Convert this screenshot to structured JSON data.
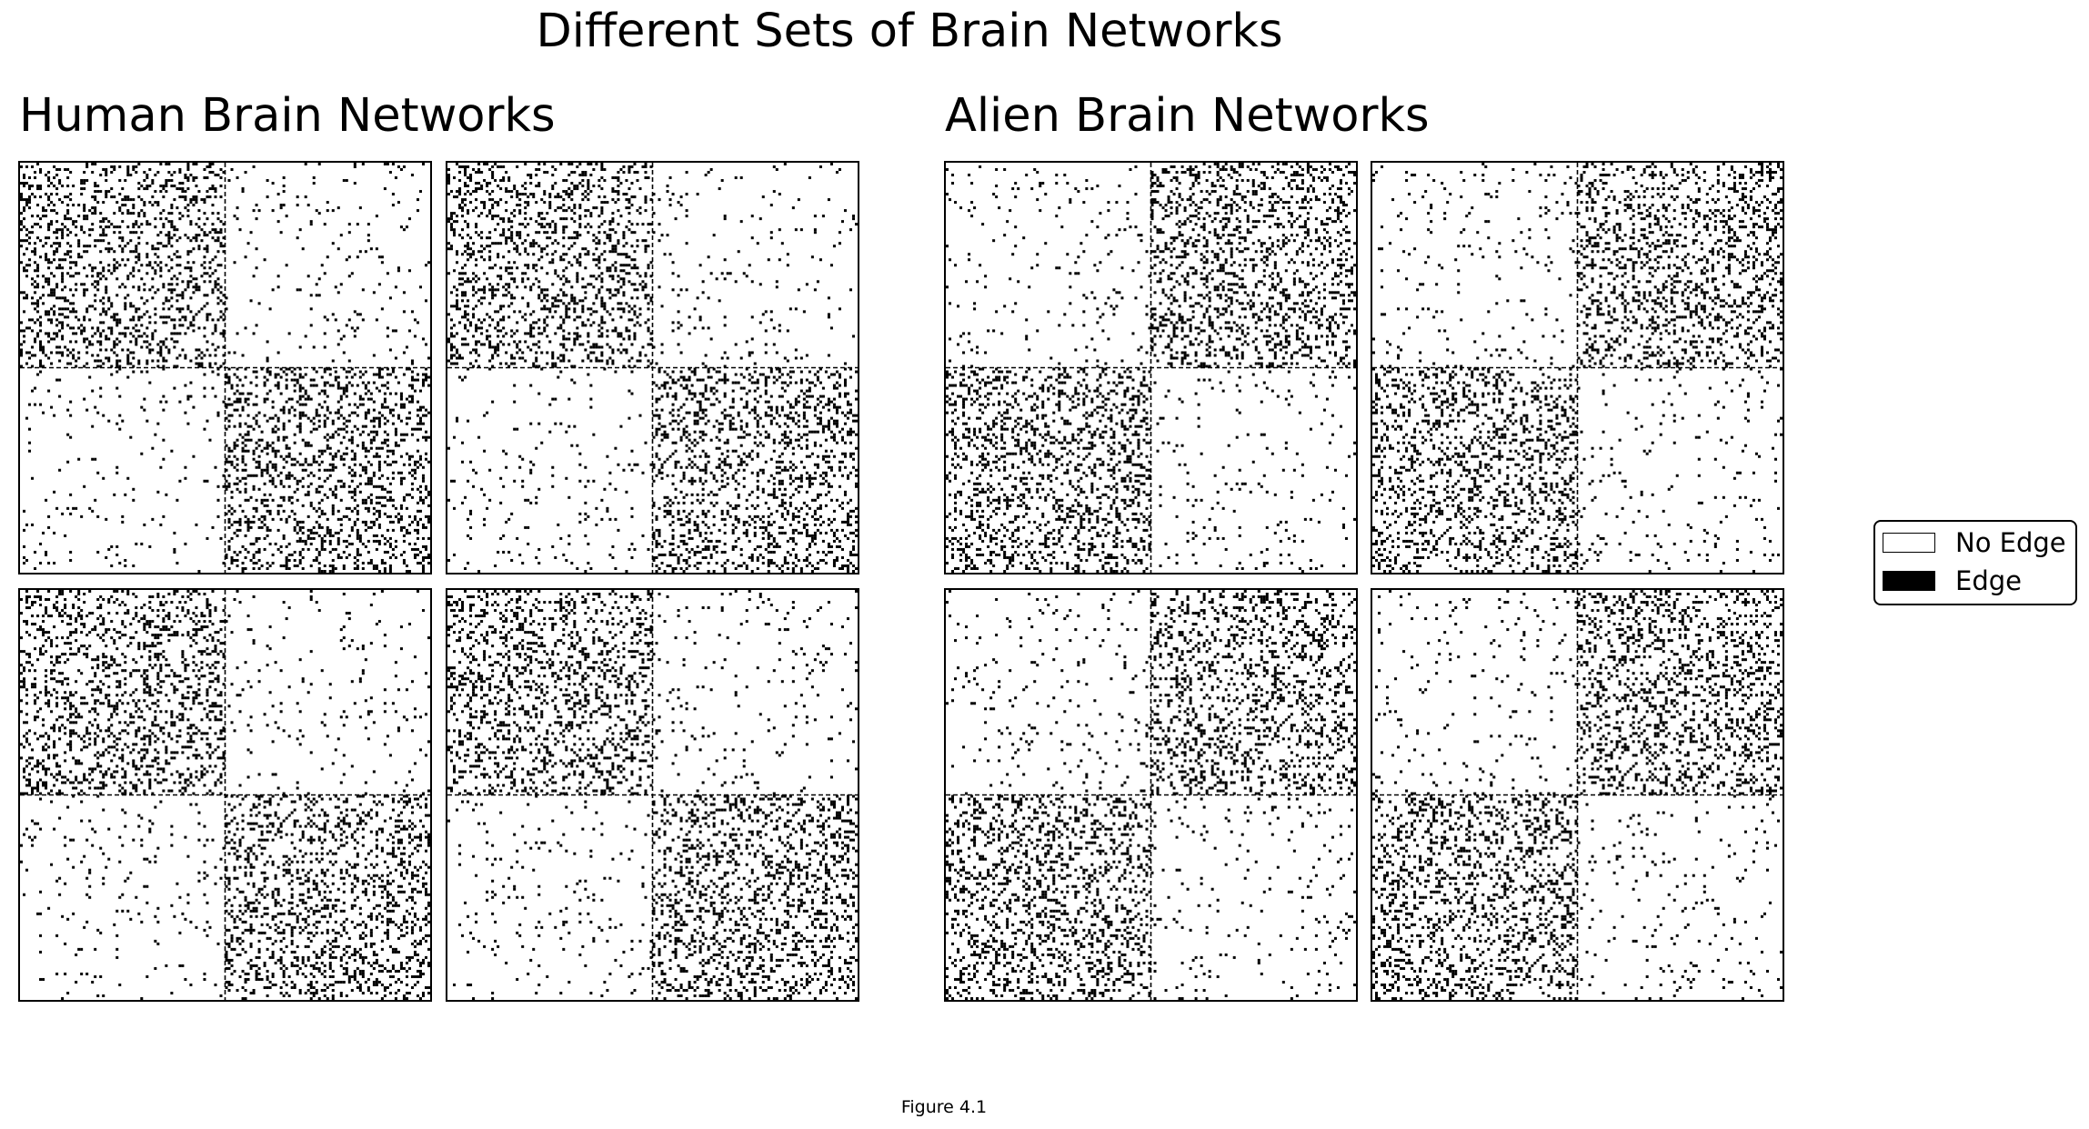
{
  "figure": {
    "title": "Different Sets of Brain Networks",
    "caption": "Figure 4.1"
  },
  "chart_data": {
    "type": "heatmap",
    "description_of_encoding": "",
    "groups": [
      {
        "title": "Human Brain Networks",
        "panels": [
          {
            "block_edge_density": [
              [
                0.22,
                0.03
              ],
              [
                0.03,
                0.22
              ]
            ]
          },
          {
            "block_edge_density": [
              [
                0.22,
                0.03
              ],
              [
                0.03,
                0.22
              ]
            ]
          },
          {
            "block_edge_density": [
              [
                0.22,
                0.03
              ],
              [
                0.03,
                0.22
              ]
            ]
          },
          {
            "block_edge_density": [
              [
                0.22,
                0.03
              ],
              [
                0.03,
                0.22
              ]
            ]
          }
        ]
      },
      {
        "title": "Alien Brain Networks",
        "panels": [
          {
            "block_edge_density": [
              [
                0.03,
                0.22
              ],
              [
                0.22,
                0.03
              ]
            ]
          },
          {
            "block_edge_density": [
              [
                0.03,
                0.22
              ],
              [
                0.22,
                0.03
              ]
            ]
          },
          {
            "block_edge_density": [
              [
                0.03,
                0.22
              ],
              [
                0.22,
                0.03
              ]
            ]
          },
          {
            "block_edge_density": [
              [
                0.03,
                0.22
              ],
              [
                0.22,
                0.03
              ]
            ]
          }
        ]
      }
    ],
    "legend": {
      "position": "right",
      "items": [
        {
          "label": "No Edge",
          "color": "#ffffff"
        },
        {
          "label": "Edge",
          "color": "#000000"
        }
      ]
    }
  }
}
